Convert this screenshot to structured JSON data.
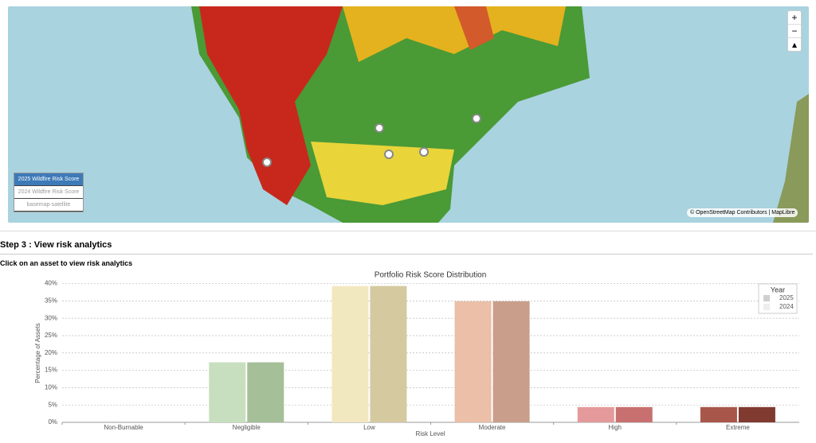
{
  "map": {
    "zoom_in": "+",
    "zoom_out": "−",
    "layers": [
      "2025 Wildfire Risk Score",
      "2024 Wildfire Risk Score",
      "basemap-satellite"
    ],
    "attribution": "© OpenStreetMap Contributors | MapLibre"
  },
  "section": {
    "title": "Step 3 : View risk analytics",
    "instruction": "Click on an asset to view risk analytics"
  },
  "chart_data": {
    "type": "bar",
    "title": "Portfolio Risk Score Distribution",
    "x_label": "Risk Level",
    "y_label": "Percentage of Assets",
    "categories": [
      "Non-Burnable",
      "Negligible",
      "Low",
      "Moderate",
      "High",
      "Extreme"
    ],
    "series": [
      {
        "name": "2025",
        "color": "#cfcfcf",
        "colors": [
          "#d9d9d9",
          "#c8dfbf",
          "#f2e8c0",
          "#ebbfa8",
          "#e4999b",
          "#a9564a"
        ],
        "values": [
          0,
          17.3,
          39.3,
          34.9,
          4.4,
          4.4
        ]
      },
      {
        "name": "2024",
        "color": "#eeeeee",
        "colors": [
          "#bbbbbb",
          "#a5bf98",
          "#d5c9a0",
          "#c99e8a",
          "#c87070",
          "#813a30"
        ],
        "values": [
          0,
          17.3,
          39.3,
          34.9,
          4.4,
          4.4
        ]
      }
    ],
    "legend_title": "Year",
    "ylim": [
      0,
      41.5
    ],
    "yticks": [
      {
        "value": 0,
        "label": "0%"
      },
      {
        "value": 5,
        "label": "5%"
      },
      {
        "value": 10,
        "label": "10%"
      },
      {
        "value": 15,
        "label": "15%"
      },
      {
        "value": 20,
        "label": "20%"
      },
      {
        "value": 25,
        "label": "25%"
      },
      {
        "value": 30,
        "label": "30%"
      },
      {
        "value": 35,
        "label": "35%"
      },
      {
        "value": 40,
        "label": "40%"
      }
    ],
    "grid": true
  }
}
